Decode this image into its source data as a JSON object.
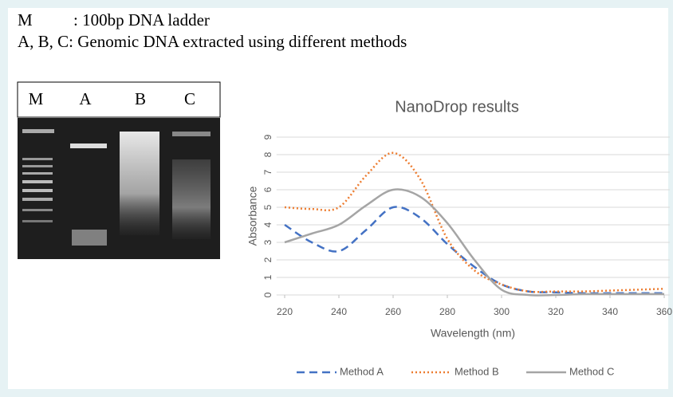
{
  "caption": {
    "key_m": "M",
    "key_m_text": ": 100bp DNA ladder",
    "key_abc": "A, B, C: Genomic DNA extracted using different methods"
  },
  "gel": {
    "lanes": [
      "M",
      "A",
      "B",
      "C"
    ]
  },
  "chart_data": {
    "type": "line",
    "title": "NanoDrop results",
    "x_label": "Wavelength (nm)",
    "y_label": "Absorbance",
    "x": [
      220,
      230,
      240,
      250,
      260,
      270,
      280,
      290,
      300,
      310,
      320,
      330,
      340,
      350,
      360
    ],
    "series": [
      {
        "name": "Method A",
        "color": "#4472c4",
        "dash": "dashed",
        "values": [
          4,
          3,
          2.5,
          3.7,
          5,
          4.4,
          2.9,
          1.6,
          0.6,
          0.2,
          0.15,
          0.1,
          0.1,
          0.1,
          0.1
        ]
      },
      {
        "name": "Method B",
        "color": "#ed7d31",
        "dash": "dotted",
        "values": [
          5,
          4.9,
          5,
          6.8,
          8.1,
          6.6,
          3.2,
          1.4,
          0.6,
          0.2,
          0.2,
          0.2,
          0.25,
          0.3,
          0.35
        ]
      },
      {
        "name": "Method C",
        "color": "#a5a5a5",
        "dash": "solid",
        "values": [
          3,
          3.5,
          4,
          5.1,
          6,
          5.6,
          4.1,
          2,
          0.3,
          0,
          0,
          0.05,
          0.05,
          0.05,
          0.05
        ]
      }
    ],
    "xlim": [
      217,
      362
    ],
    "xticks": [
      220,
      240,
      260,
      280,
      300,
      320,
      340,
      360
    ],
    "ylim": [
      0,
      9
    ],
    "yticks": [
      0,
      1,
      2,
      3,
      4,
      5,
      6,
      7,
      8,
      9
    ],
    "grid": true,
    "legend": "bottom"
  }
}
